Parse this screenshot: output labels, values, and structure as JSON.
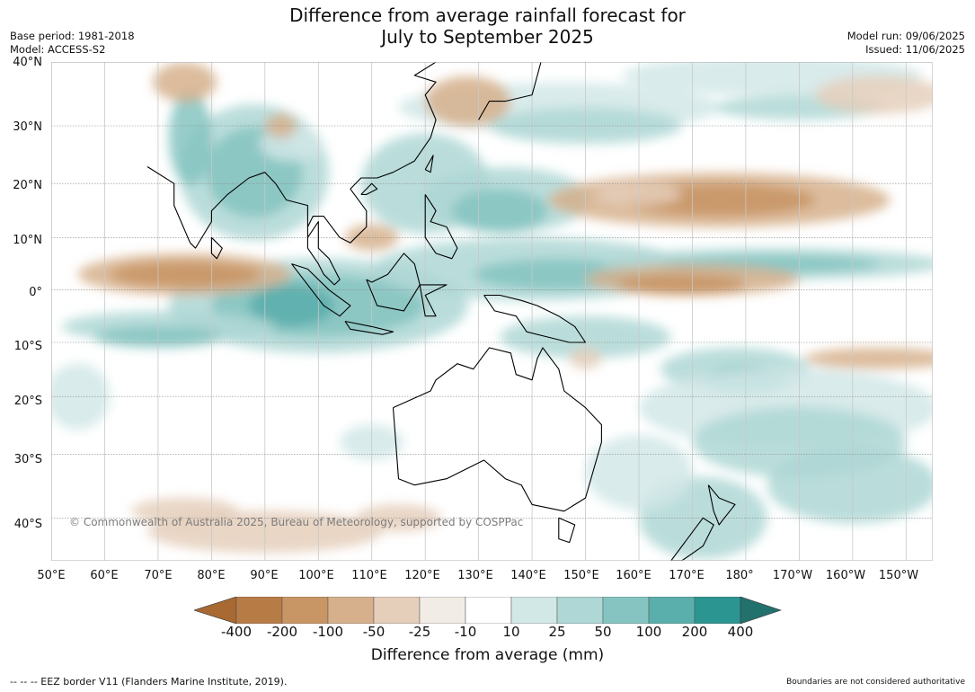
{
  "title": {
    "line1": "Difference from average rainfall forecast for",
    "line2": "July to September 2025"
  },
  "meta_left": {
    "base_period": "Base period: 1981-2018",
    "model": "Model: ACCESS-S2"
  },
  "meta_right": {
    "model_run": "Model run: 09/06/2025",
    "issued": "Issued: 11/06/2025"
  },
  "map": {
    "extent": {
      "lon_min": 50,
      "lon_max": 215,
      "lat_min": -46,
      "lat_max": 40
    },
    "lat_labels": [
      "40°N",
      "30°N",
      "20°N",
      "10°N",
      "0°",
      "10°S",
      "20°S",
      "30°S",
      "40°S"
    ],
    "lat_values": [
      40,
      30,
      20,
      10,
      0,
      -10,
      -20,
      -30,
      -40
    ],
    "lon_labels": [
      "50°E",
      "60°E",
      "70°E",
      "80°E",
      "90°E",
      "100°E",
      "110°E",
      "120°E",
      "130°E",
      "140°E",
      "150°E",
      "160°E",
      "170°E",
      "180°",
      "170°W",
      "160°W",
      "150°W"
    ],
    "lon_values": [
      50,
      60,
      70,
      80,
      90,
      100,
      110,
      120,
      130,
      140,
      150,
      160,
      170,
      180,
      190,
      200,
      210
    ],
    "copyright": "© Commonwealth of Australia 2025, Bureau of Meteorology, supported by COSPPac"
  },
  "colorbar": {
    "ticks": [
      "-400",
      "-200",
      "-100",
      "-50",
      "-25",
      "-10",
      "10",
      "25",
      "50",
      "100",
      "200",
      "400"
    ],
    "colors": [
      "#a86a32",
      "#b77b46",
      "#c89564",
      "#d6b08c",
      "#e5cfbb",
      "#f2ece6",
      "#ffffff",
      "#d2e8e7",
      "#aed7d5",
      "#85c4c1",
      "#5aaeab",
      "#2b9591",
      "#23716d"
    ],
    "label": "Difference from average (mm)"
  },
  "footer": {
    "left": "--  --  -- EEZ border V11 (Flanders Marine Institute, 2019).",
    "right": "Boundaries are not considered authoritative"
  }
}
